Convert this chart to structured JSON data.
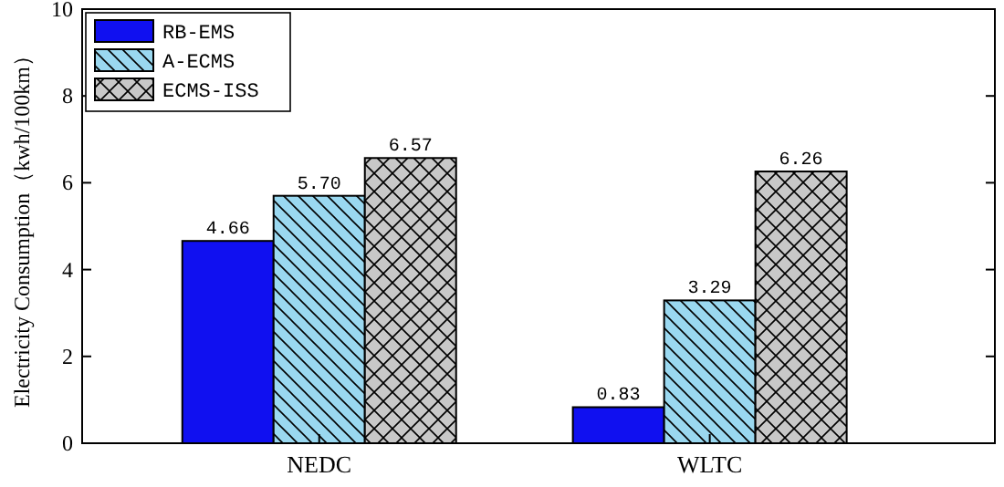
{
  "chart_data": {
    "type": "bar",
    "ylabel": "Electricity Consumption（kwh/100km）",
    "categories": [
      "NEDC",
      "WLTC"
    ],
    "series": [
      {
        "name": "RB-EMS",
        "color": "#1010f0",
        "values": [
          4.66,
          0.83
        ],
        "value_labels": [
          "4.66",
          "0.83"
        ]
      },
      {
        "name": "A-ECMS",
        "color": "#9ad8f0",
        "values": [
          5.7,
          3.29
        ],
        "value_labels": [
          "5.70",
          "3.29"
        ]
      },
      {
        "name": "ECMS-ISS",
        "color": "#c8c8c8",
        "values": [
          6.57,
          6.26
        ],
        "value_labels": [
          "6.57",
          "6.26"
        ]
      }
    ],
    "ylim": [
      0,
      10
    ],
    "yticks": [
      0,
      2,
      4,
      6,
      8,
      10
    ],
    "legend": "top left",
    "grid": false
  }
}
